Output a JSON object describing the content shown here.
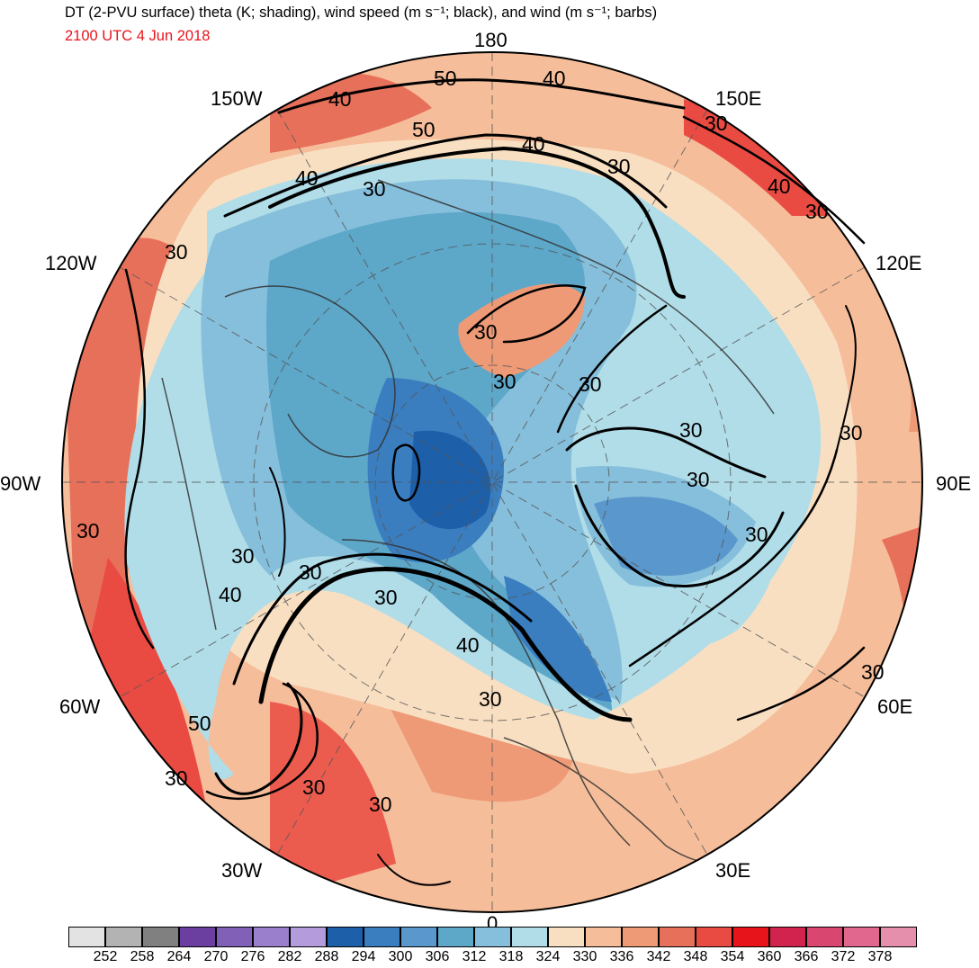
{
  "header": {
    "title": "DT (2-PVU surface) theta (K; shading), wind speed (m s⁻¹; black), and wind (m s⁻¹; barbs)",
    "valid_time": "2100 UTC 4 Jun 2018"
  },
  "map": {
    "projection": "north polar stereographic",
    "longitude_labels": {
      "top": "180",
      "upper_left": "150W",
      "upper_right": "150E",
      "left_upper": "120W",
      "right_upper": "120E",
      "left": "90W",
      "right": "90E",
      "left_lower": "60W",
      "right_lower": "60E",
      "lower_left": "30W",
      "lower_right": "30E",
      "bottom": "0"
    },
    "contour_labels": [
      "50",
      "40",
      "40",
      "50",
      "40",
      "30",
      "30",
      "40",
      "30",
      "30",
      "30",
      "30",
      "30",
      "30",
      "30",
      "30",
      "30",
      "40",
      "30",
      "30",
      "40",
      "30",
      "30",
      "30",
      "40",
      "50",
      "30",
      "30",
      "30",
      "30",
      "30"
    ]
  },
  "colorbar": {
    "colors": [
      "#e3e3e3",
      "#b3b3b3",
      "#808080",
      "#6a3fa0",
      "#8161b8",
      "#9a7fcc",
      "#b49bdc",
      "#1d5fa8",
      "#3a7ec0",
      "#5a97cc",
      "#5da7c9",
      "#86bfdb",
      "#b0dde8",
      "#f9dfc2",
      "#f5bd9a",
      "#ee9a76",
      "#e7705a",
      "#e94b42",
      "#e8141c",
      "#d2234f",
      "#d94670",
      "#e2678f",
      "#e68fad"
    ],
    "tick_labels": [
      "252",
      "258",
      "264",
      "270",
      "276",
      "282",
      "288",
      "294",
      "300",
      "306",
      "312",
      "318",
      "324",
      "330",
      "336",
      "342",
      "348",
      "354",
      "360",
      "366",
      "372",
      "378"
    ]
  }
}
